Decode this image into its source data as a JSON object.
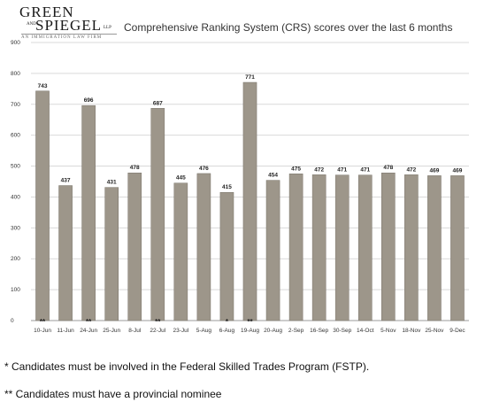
{
  "logo": {
    "line1": "GREEN",
    "and": "AND",
    "line2": "SPIEGEL",
    "llp": "LLP",
    "tagline": "AN IMMIGRATION LAW FIRM"
  },
  "chart_data": {
    "type": "bar",
    "title": "Comprehensive Ranking System (CRS) scores over the last 6 months",
    "xlabel": "",
    "ylabel": "",
    "ylim": [
      0,
      900
    ],
    "yticks": [
      0,
      100,
      200,
      300,
      400,
      500,
      600,
      700,
      800,
      900
    ],
    "grid": true,
    "bar_color": "#9d968a",
    "categories": [
      "10-Jun",
      "11-Jun",
      "24-Jun",
      "25-Jun",
      "8-Jul",
      "22-Jul",
      "23-Jul",
      "5-Aug",
      "6-Aug",
      "19-Aug",
      "20-Aug",
      "2-Sep",
      "16-Sep",
      "30-Sep",
      "14-Oct",
      "5-Nov",
      "18-Nov",
      "25-Nov",
      "9-Dec"
    ],
    "values": [
      743,
      437,
      696,
      431,
      478,
      687,
      445,
      476,
      415,
      771,
      454,
      475,
      472,
      471,
      471,
      478,
      472,
      469,
      469
    ],
    "markers": [
      "**",
      "",
      "**",
      "",
      "",
      "**",
      "",
      "",
      "*",
      "**",
      "",
      "",
      "",
      "",
      "",
      "",
      "",
      "",
      ""
    ]
  },
  "footnotes": {
    "single": "* Candidates must be involved in the Federal Skilled Trades Program (FSTP).",
    "double": "** Candidates must have a provincial nominee"
  }
}
